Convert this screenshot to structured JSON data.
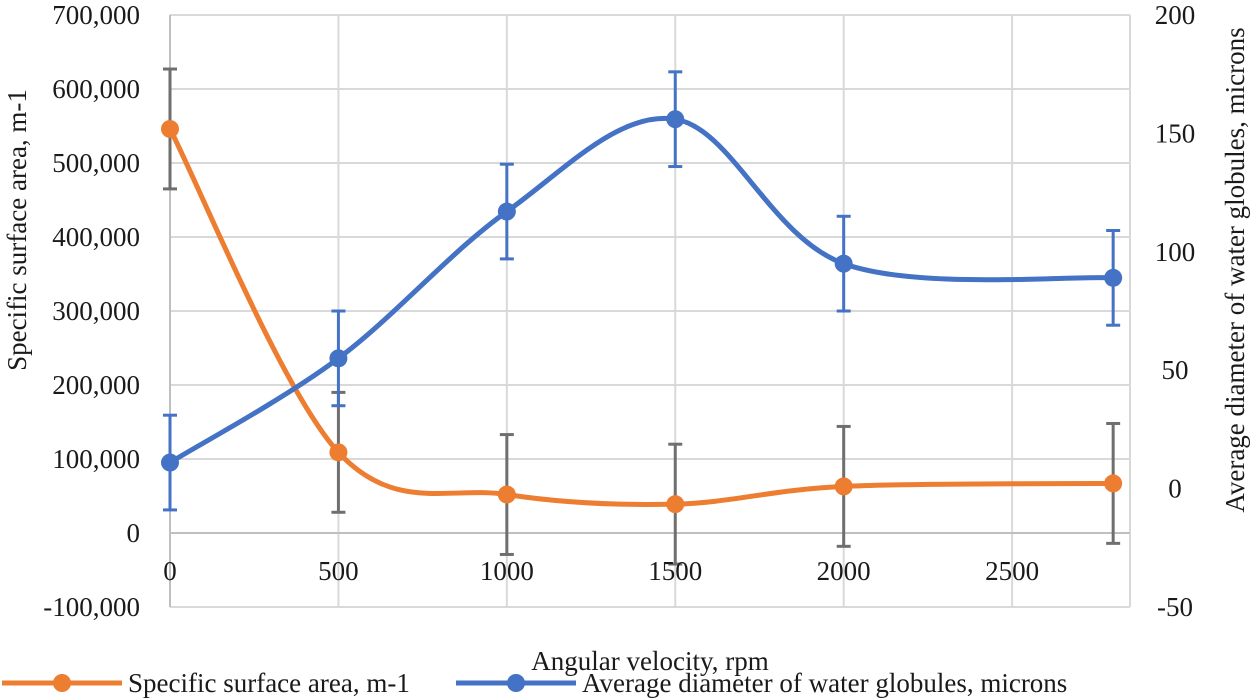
{
  "chart_data": {
    "type": "line",
    "x_axis": {
      "label": "Angular velocity, rpm",
      "min": 0,
      "max": 2850,
      "ticks": [
        0,
        500,
        1000,
        1500,
        2000,
        2500
      ],
      "tick_labels": [
        "0",
        "500",
        "1000",
        "1500",
        "2000",
        "2500"
      ]
    },
    "y_left": {
      "label": "Specific surface area, m-1",
      "min": -100000,
      "max": 700000,
      "ticks": [
        -100000,
        0,
        100000,
        200000,
        300000,
        400000,
        500000,
        600000,
        700000
      ],
      "tick_labels": [
        "-100,000",
        "0",
        "100,000",
        "200,000",
        "300,000",
        "400,000",
        "500,000",
        "600,000",
        "700,000"
      ]
    },
    "y_right": {
      "label": "Average diameter of water globules, microns",
      "min": -50,
      "max": 200,
      "ticks": [
        -50,
        0,
        50,
        100,
        150,
        200
      ],
      "tick_labels": [
        "-50",
        "0",
        "50",
        "100",
        "150",
        "200"
      ]
    },
    "grid": true,
    "legend_position": "bottom",
    "series": [
      {
        "name": "Specific surface area, m-1",
        "axis": "left",
        "color": "#ED7D31",
        "error_color": "#6f6f6f",
        "x": [
          0,
          500,
          1000,
          1500,
          2000,
          2800
        ],
        "y": [
          546000,
          109000,
          52000,
          39000,
          63000,
          67000
        ],
        "error": [
          81000,
          81000,
          81000,
          81000,
          81000,
          81000
        ]
      },
      {
        "name": "Average diameter of water globules, microns",
        "axis": "right",
        "color": "#4472C4",
        "error_color": "#4472C4",
        "x": [
          0,
          500,
          1000,
          1500,
          2000,
          2800
        ],
        "y": [
          11,
          55,
          117,
          156,
          95,
          89
        ],
        "error": [
          20,
          20,
          20,
          20,
          20,
          20
        ]
      }
    ]
  }
}
